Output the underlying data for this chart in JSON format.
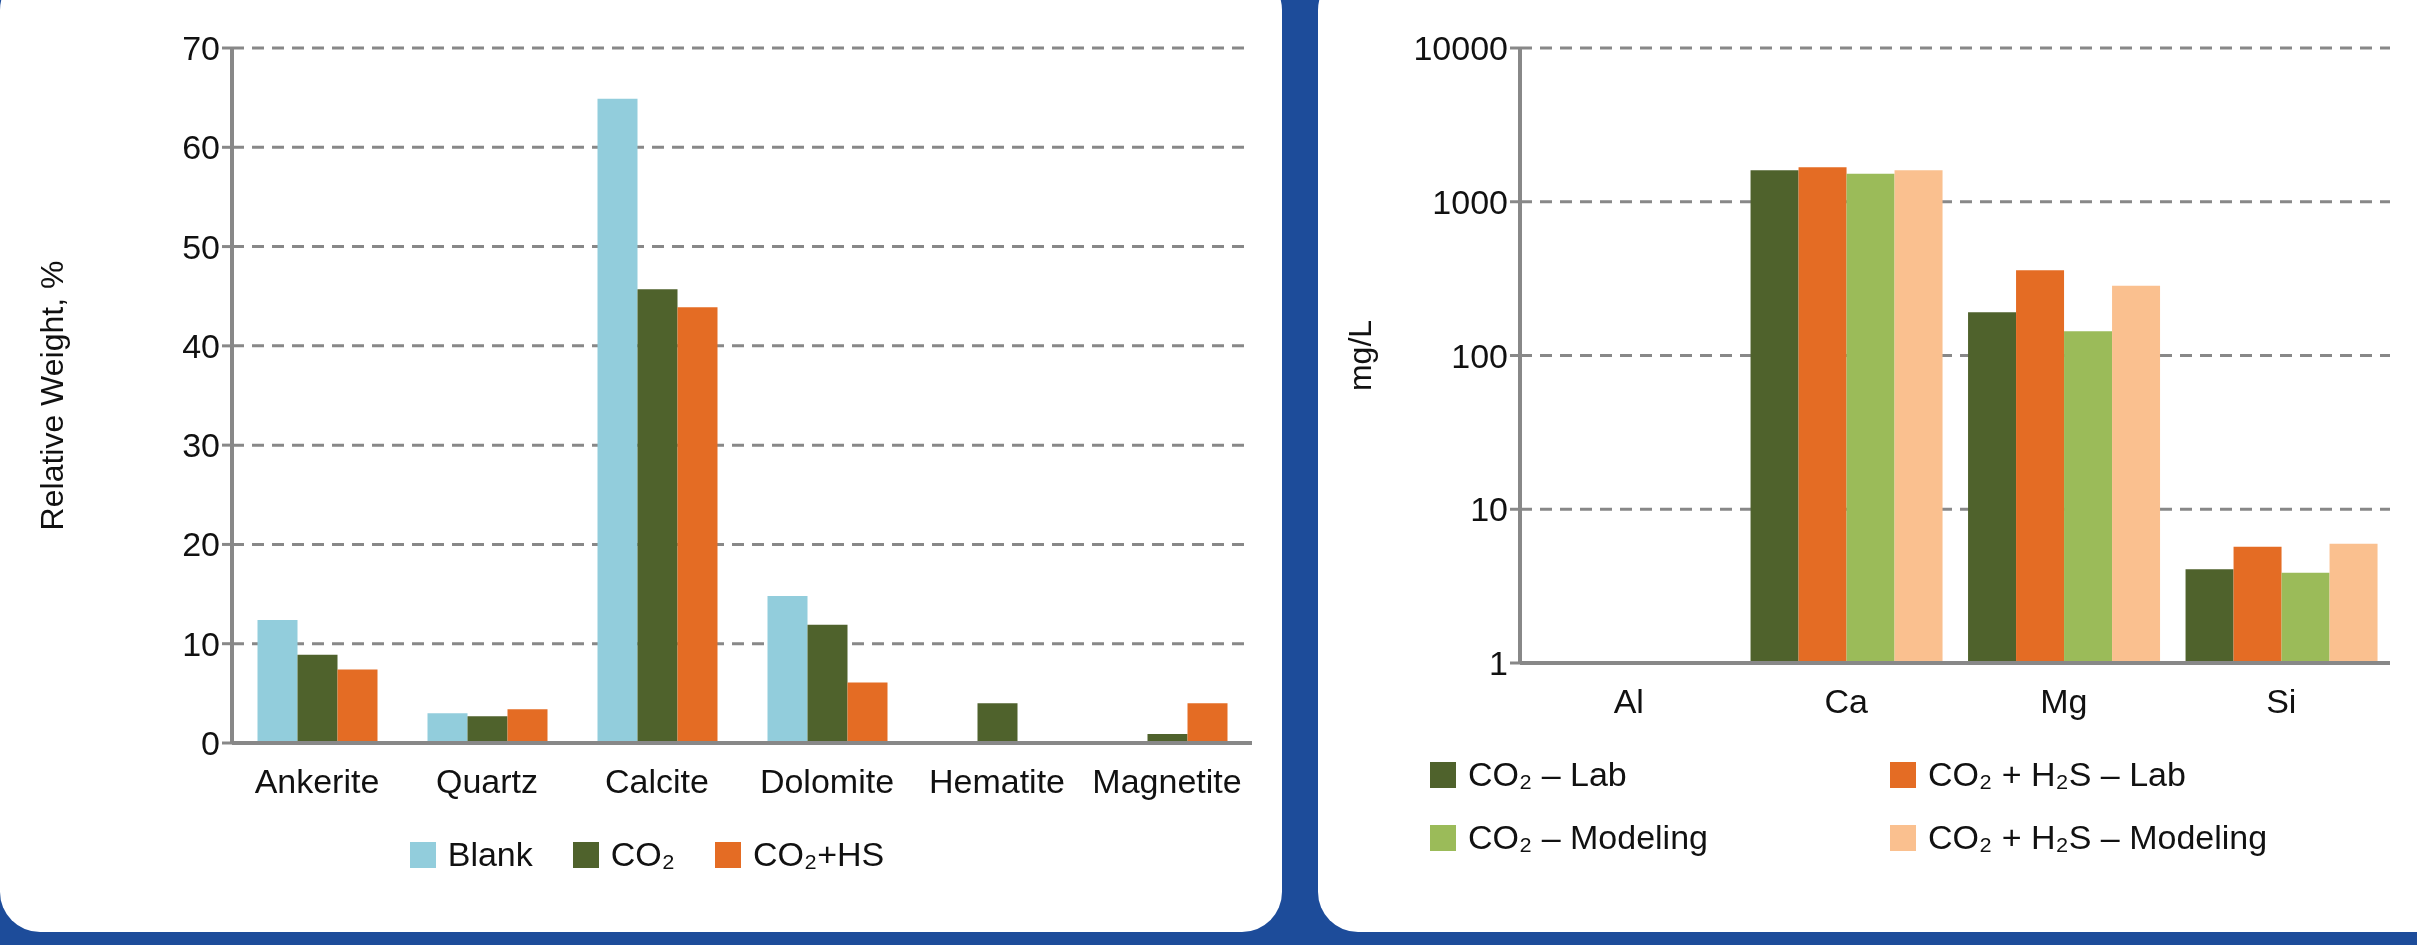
{
  "chart_data": [
    {
      "type": "bar",
      "ylabel": "Relative Weight, %",
      "categories": [
        "Ankerite",
        "Quartz",
        "Calcite",
        "Dolomite",
        "Hematite",
        "Magnetite"
      ],
      "series": [
        {
          "name": "Blank",
          "color": "#92cddc",
          "values": [
            12.4,
            3.0,
            64.9,
            14.8,
            null,
            null
          ]
        },
        {
          "name": "CO₂",
          "color": "#4f622c",
          "values": [
            8.9,
            2.7,
            45.7,
            11.9,
            4.0,
            0.9
          ]
        },
        {
          "name": "CO₂+HS",
          "color": "#e46c24",
          "values": [
            7.4,
            3.4,
            43.9,
            6.1,
            null,
            4.0
          ]
        }
      ],
      "ylim": [
        0,
        70
      ],
      "yticks": [
        0,
        10,
        20,
        30,
        40,
        50,
        60,
        70
      ],
      "grid": "y",
      "legend": "bottom"
    },
    {
      "type": "bar",
      "ylabel": "mg/L",
      "categories": [
        "Al",
        "Ca",
        "Mg",
        "Si"
      ],
      "series": [
        {
          "name": "CO₂ – Lab",
          "color": "#4f622c",
          "values": [
            null,
            1600,
            191,
            4.07
          ]
        },
        {
          "name": "CO₂ + H₂S – Lab",
          "color": "#e46c24",
          "values": [
            null,
            1675,
            358,
            5.7
          ]
        },
        {
          "name": "CO₂ – Modeling",
          "color": "#9bbb59",
          "values": [
            null,
            1520,
            144,
            3.86
          ]
        },
        {
          "name": "CO₂ + H₂S – Modeling",
          "color": "#fac08f",
          "values": [
            null,
            1600,
            284,
            5.97
          ]
        }
      ],
      "ylim": [
        1,
        10000
      ],
      "yticks": [
        1,
        10,
        100,
        1000,
        10000
      ],
      "log": "y",
      "grid": "y",
      "legend": "bottom"
    }
  ]
}
